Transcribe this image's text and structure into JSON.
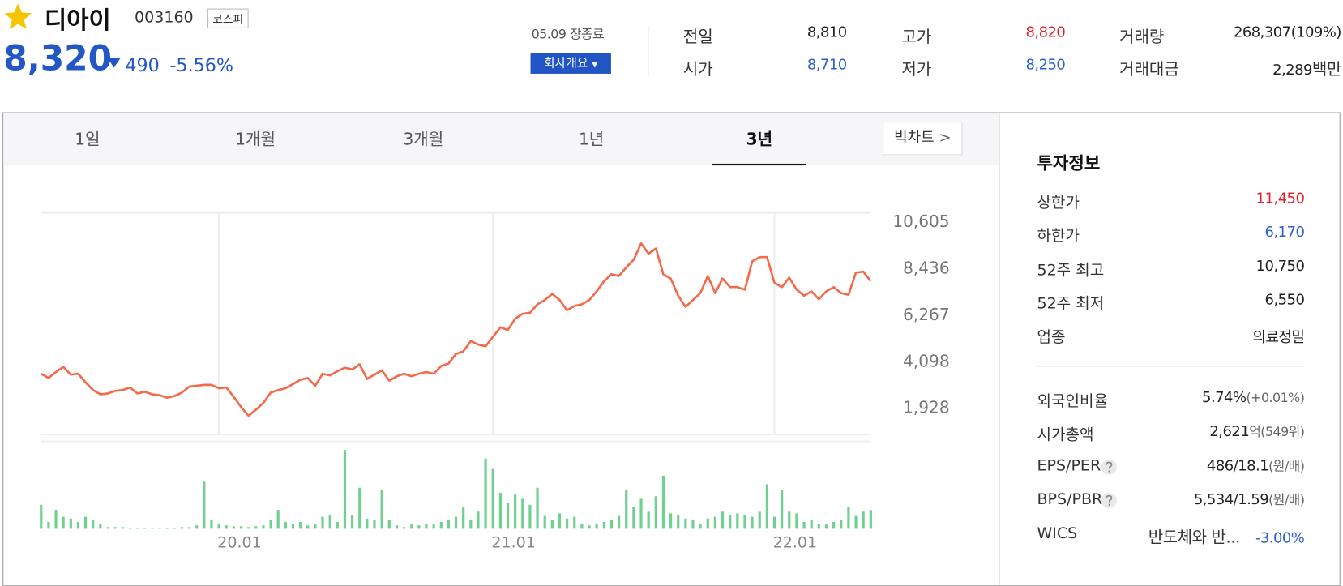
{
  "header": {
    "name": "디아이",
    "code": "003160",
    "market": "코스피",
    "price": "8,320",
    "change": "490",
    "change_rate": "-5.56%",
    "status": "05.09 장종료",
    "company_button": "회사개요",
    "color": "#2357c6"
  },
  "quote": {
    "rows": [
      [
        {
          "label": "전일",
          "value": "8,810",
          "color": "#222222"
        },
        {
          "label": "고가",
          "value": "8,820",
          "color": "#e5202e"
        },
        {
          "label": "거래량",
          "value": "268,307(109%)",
          "color": "#222222"
        }
      ],
      [
        {
          "label": "시가",
          "value": "8,710",
          "color": "#2b5fd1"
        },
        {
          "label": "저가",
          "value": "8,250",
          "color": "#2b5fd1"
        },
        {
          "label": "거래대금",
          "value": "2,289",
          "unit": "백만",
          "color": "#222222"
        }
      ]
    ]
  },
  "tabs": [
    {
      "label": "1일"
    },
    {
      "label": "1개월"
    },
    {
      "label": "3개월"
    },
    {
      "label": "1년"
    },
    {
      "label": "3년",
      "active": true
    }
  ],
  "big_chart": "빅차트",
  "invest_info": {
    "title": "투자정보",
    "group1": [
      {
        "label": "상한가",
        "value": "11,450",
        "color": "#e5202e"
      },
      {
        "label": "하한가",
        "value": "6,170",
        "color": "#2b5fd1"
      },
      {
        "label": "52주 최고",
        "value": "10,750"
      },
      {
        "label": "52주 최저",
        "value": "6,550"
      },
      {
        "label": "업종",
        "value": "의료정밀"
      }
    ],
    "group2": [
      {
        "label": "외국인비율",
        "value": "5.74%",
        "sub": "(+0.01%)"
      },
      {
        "label": "시가총액",
        "value": "2,621",
        "sub": "억(549위)"
      },
      {
        "label": "EPS/PER",
        "help": true,
        "value": "486/18.1",
        "sub": "(원/배)"
      },
      {
        "label": "BPS/PBR",
        "help": true,
        "value": "5,534/1.59",
        "sub": "(원/배)"
      },
      {
        "label": "WICS",
        "value": "반도체와 반...",
        "note": "-3.00%",
        "note_color": "#2b5fd1"
      }
    ]
  },
  "chart_data": {
    "type": "line",
    "categories": [
      null,
      null,
      null,
      null,
      null,
      null,
      null,
      null,
      null,
      null,
      null,
      null,
      null,
      null,
      null,
      null,
      null,
      null,
      null,
      null,
      null,
      null,
      null,
      null,
      "20.01",
      null,
      null,
      null,
      null,
      null,
      null,
      null,
      null,
      null,
      null,
      null,
      null,
      null,
      null,
      null,
      null,
      null,
      null,
      null,
      null,
      null,
      null,
      null,
      null,
      null,
      null,
      null,
      null,
      null,
      null,
      null,
      null,
      null,
      null,
      null,
      null,
      "21.01",
      null,
      null,
      null,
      null,
      null,
      null,
      null,
      null,
      null,
      null,
      null,
      null,
      null,
      null,
      null,
      null,
      null,
      null,
      null,
      null,
      null,
      null,
      null,
      null,
      null,
      null,
      null,
      null,
      null,
      null,
      null,
      null,
      null,
      null,
      null,
      null,
      null,
      "22.01",
      null,
      null,
      null,
      null,
      null,
      null,
      null,
      null,
      null,
      null,
      null,
      null,
      null
    ],
    "series": [
      {
        "color": "#f4694a",
        "values": [
          3485,
          3285,
          3565,
          3805,
          3445,
          3485,
          3085,
          2725,
          2525,
          2565,
          2685,
          2725,
          2845,
          2565,
          2645,
          2525,
          2485,
          2365,
          2445,
          2605,
          2885,
          2925,
          2965,
          2965,
          2805,
          2845,
          2405,
          1925,
          1525,
          1805,
          2125,
          2605,
          2725,
          2805,
          3005,
          3205,
          3285,
          2925,
          3485,
          3405,
          3605,
          3765,
          3685,
          3925,
          3245,
          3445,
          3645,
          3165,
          3365,
          3485,
          3365,
          3485,
          3565,
          3485,
          3845,
          3965,
          4405,
          4525,
          5005,
          4845,
          4765,
          5205,
          5645,
          5525,
          6045,
          6285,
          6325,
          6725,
          6925,
          7205,
          6925,
          6445,
          6645,
          6725,
          6925,
          7325,
          7805,
          8125,
          8045,
          8445,
          8805,
          9565,
          9085,
          9325,
          8125,
          7925,
          7125,
          6605,
          6925,
          7245,
          8045,
          7245,
          7925,
          7525,
          7525,
          7405,
          8725,
          8925,
          8925,
          7725,
          7525,
          7965,
          7405,
          7125,
          7325,
          6965,
          7325,
          7525,
          7245,
          7165,
          8205,
          8245,
          7805
        ]
      },
      {
        "color": "#6fd08f",
        "axis": "y2",
        "values": [
          28,
          8,
          22,
          14,
          12,
          8,
          14,
          10,
          6,
          2,
          2,
          2,
          1,
          1,
          1,
          1,
          1,
          1,
          1,
          2,
          2,
          4,
          55,
          10,
          5,
          4,
          3,
          3,
          2,
          3,
          4,
          10,
          22,
          8,
          6,
          8,
          4,
          5,
          14,
          16,
          8,
          92,
          16,
          48,
          12,
          10,
          45,
          10,
          4,
          2,
          5,
          4,
          6,
          5,
          8,
          10,
          14,
          25,
          10,
          20,
          82,
          70,
          42,
          30,
          40,
          35,
          28,
          48,
          15,
          10,
          18,
          12,
          14,
          6,
          4,
          6,
          8,
          10,
          15,
          45,
          25,
          35,
          20,
          38,
          62,
          18,
          16,
          12,
          10,
          5,
          12,
          14,
          20,
          16,
          18,
          16,
          14,
          20,
          52,
          14,
          45,
          20,
          18,
          8,
          10,
          6,
          5,
          8,
          10,
          25,
          15,
          20,
          22
        ]
      }
    ],
    "ylim": [
      648,
      11005
    ],
    "yticks": [
      {
        "value": 10605,
        "label": "10,605"
      },
      {
        "value": 8436,
        "label": "8,436"
      },
      {
        "value": 6267,
        "label": "6,267"
      },
      {
        "value": 4098,
        "label": "4,098"
      },
      {
        "value": 1928,
        "label": "1,928"
      }
    ],
    "y2lim": [
      0,
      100
    ],
    "grid": true
  }
}
